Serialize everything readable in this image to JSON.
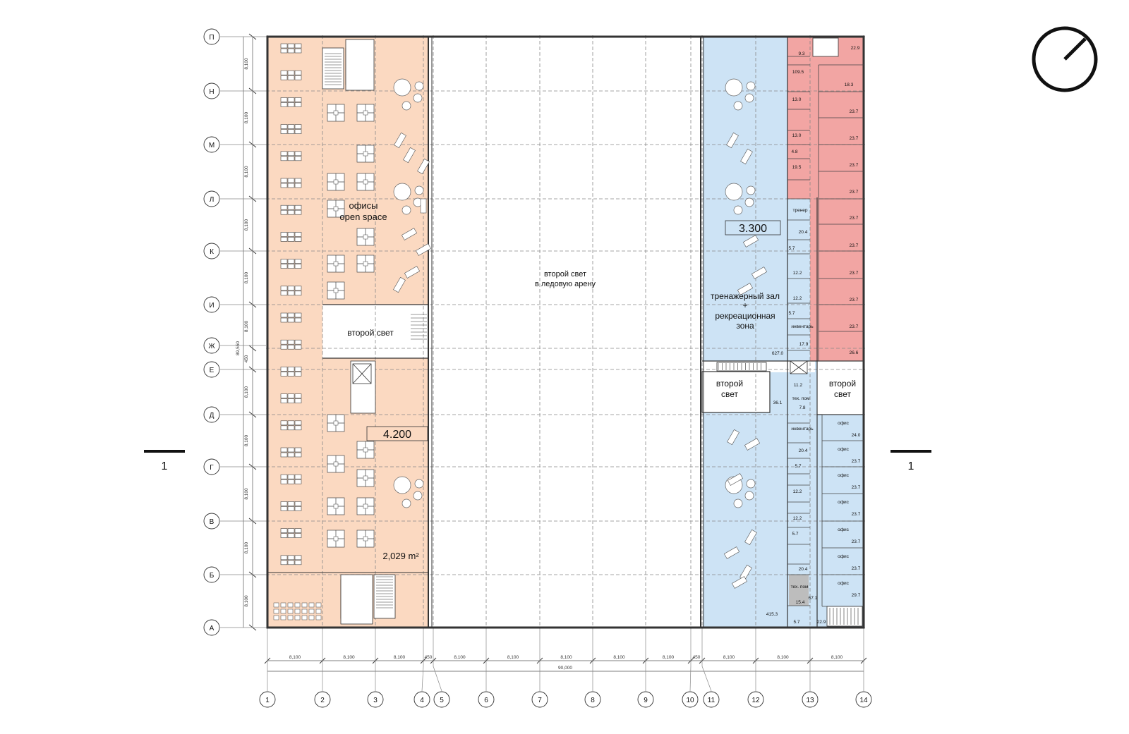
{
  "grid": {
    "rows": [
      "П",
      "Н",
      "М",
      "Л",
      "К",
      "И",
      "Ж",
      "Е",
      "Д",
      "Г",
      "В",
      "Б",
      "А"
    ],
    "cols": [
      "1",
      "2",
      "3",
      "4",
      "5",
      "6",
      "7",
      "8",
      "9",
      "10",
      "11",
      "12",
      "13",
      "14"
    ],
    "row_dims": [
      "8,100",
      "8,100",
      "8,100",
      "8,100",
      "8,100",
      "8,100",
      "450",
      "8,100",
      "8,100",
      "8,100",
      "8,100",
      "8,100"
    ],
    "total_height": "89,550",
    "col_dims": [
      "8,100",
      "8,100",
      "8,100",
      "450",
      "8,100",
      "8,100",
      "8,100",
      "8,100",
      "8,100",
      "450",
      "8,100",
      "8,100",
      "8,100"
    ],
    "total_width": "90,000"
  },
  "section": {
    "left": "1",
    "right": "1"
  },
  "colors": {
    "office": "#fbd9c1",
    "gym": "#cde3f5",
    "red_offices": "#f2a5a3",
    "tech": "#bdbdbd",
    "wall": "#333333"
  },
  "labels": {
    "offices_title": "офисы",
    "offices_subtitle": "open space",
    "second_light_left": "второй свет",
    "level_left": "4.200",
    "area_left": "2,029 m²",
    "arena_line1": "второй свет",
    "arena_line2": "в ледовую арену",
    "level_right": "3.300",
    "gym_line1": "тренажерный зал",
    "gym_line2": "+",
    "gym_line3": "рекреационная",
    "gym_line4": "зона",
    "second_light_right_a_1": "второй",
    "second_light_right_a_2": "свет",
    "second_light_right_b_1": "второй",
    "second_light_right_b_2": "свет"
  },
  "rooms": {
    "r22_9_top": "22.9",
    "r9_3": "9.3",
    "r109_5": "109.5",
    "r18_3": "18.3",
    "r13_0a": "13.0",
    "r13_0b": "13.0",
    "r4_8": "4.8",
    "r19_5": "19.5",
    "trainer": "тренер",
    "r20_4_top": "20.4",
    "r5_7a": "5.7",
    "r12_2a": "12.2",
    "r12_2b": "12.2",
    "r5_7b": "5.7",
    "inv_top": "инвентарь",
    "r17_9": "17.9",
    "r627_0": "627.0",
    "red": [
      "23.7",
      "23.7",
      "23.7",
      "23.7",
      "23.7",
      "23.7",
      "23.7",
      "23.7",
      "23.7",
      "26.6"
    ],
    "r11_2": "11.2",
    "r36_1": "36.1",
    "tech_room_mid": "тех. пом",
    "r7_8": "7.8",
    "inv_bottom": "инвентарь",
    "r20_4_b": "20.4",
    "r5_7c": "5.7",
    "r12_2c": "12.2",
    "r12_2d": "12.2",
    "r5_7d": "5.7",
    "r20_4_c": "20.4",
    "tech_room_bottom": "тех. пом",
    "r15_4": "15.4",
    "r67_1": "67.1",
    "r415_3": "415.3",
    "r5_7e": "5.7",
    "r22_9_bottom": "22.9",
    "office_word": "офис",
    "office_areas": [
      "24.0",
      "23.7",
      "23.7",
      "23.7",
      "23.7",
      "23.7",
      "29.7"
    ]
  }
}
